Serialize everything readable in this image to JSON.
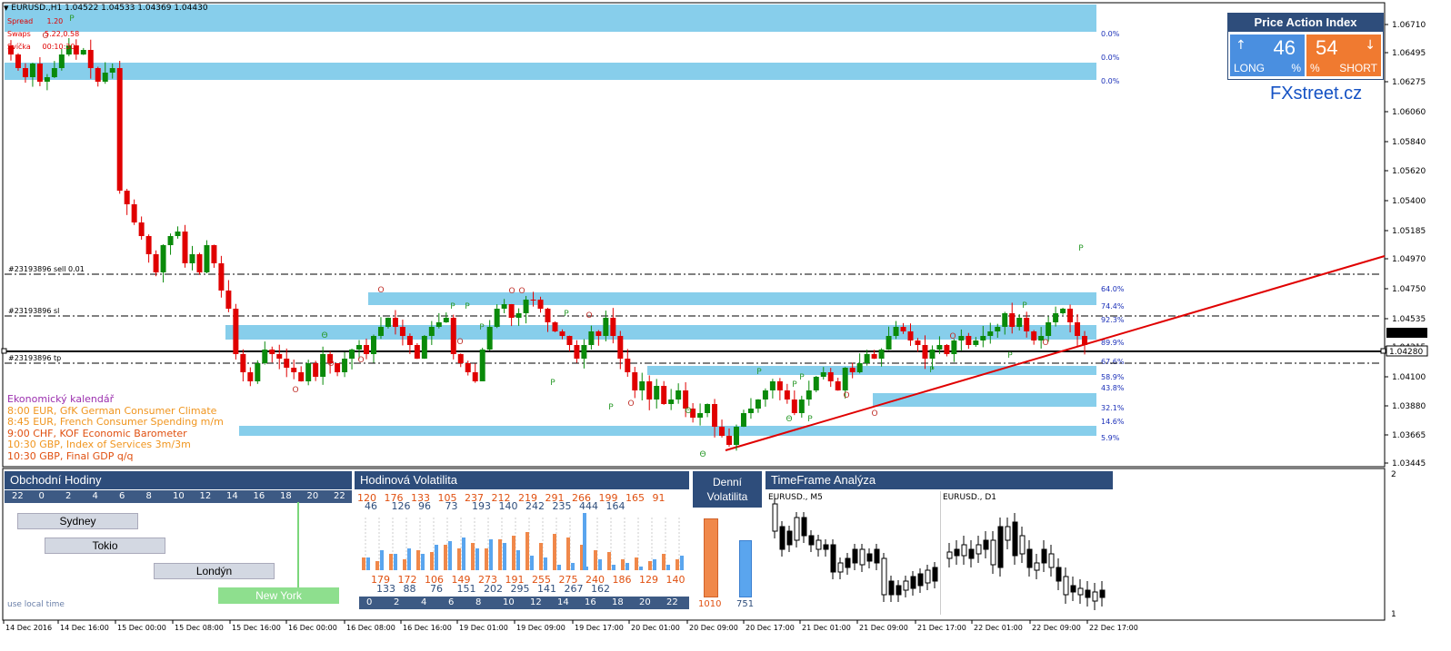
{
  "symbol_header": "EURUSD.,H1  1.04522 1.04533 1.04369 1.04430",
  "info": {
    "spread_label": "Spread",
    "spread_value": "1.20",
    "swaps_label": "Swaps",
    "swaps_value": "5.22,0.58",
    "candle_label": "Svíčka",
    "candle_value": "00:10:30"
  },
  "price_axis": [
    "1.06710",
    "1.06495",
    "1.06275",
    "1.06060",
    "1.05840",
    "1.05620",
    "1.05400",
    "1.05185",
    "1.04970",
    "1.04750",
    "1.04535",
    "1.04315",
    "1.04100",
    "1.03880",
    "1.03665",
    "1.03445"
  ],
  "price_current": "1.04430",
  "price_line": "1.04280",
  "order_lines": {
    "sell": "#23193896 sell 0.01",
    "sl": "#23193896 sl",
    "tp": "#23193896 tp"
  },
  "zone_percents": [
    "0.0%",
    "0.0%",
    "0.0%",
    "64.0%",
    "74.4%",
    "92.3%",
    "89.9%",
    "67.6%",
    "58.9%",
    "43.8%",
    "32.1%",
    "14.6%",
    "5.9%"
  ],
  "calendar": {
    "title": "Ekonomický kalendář",
    "events": [
      {
        "text": "8:00 EUR, GfK German Consumer Climate",
        "color": "#f0951e"
      },
      {
        "text": "8:45 EUR, French Consumer Spending m/m",
        "color": "#f0951e"
      },
      {
        "text": "9:00 CHF, KOF Economic Barometer",
        "color": "#e05010"
      },
      {
        "text": "10:30 GBP, Index of Services 3m/3m",
        "color": "#f0951e"
      },
      {
        "text": "10:30 GBP, Final GDP q/q",
        "color": "#e05010"
      }
    ]
  },
  "price_action_index": {
    "title": "Price Action Index",
    "long_value": "46",
    "long_label": "LONG",
    "long_pct": "%",
    "short_value": "54",
    "short_label": "SHORT",
    "short_pct": "%",
    "up_arrow": "↑",
    "down_arrow": "↓",
    "colors": {
      "long": "#4a8fe0",
      "short": "#f07a30",
      "header": "#2e4d7b"
    }
  },
  "fxstreet": "FXstreet.cz",
  "panels": {
    "trading_hours": {
      "title": "Obchodní Hodiny",
      "hours": [
        "22",
        "0",
        "2",
        "4",
        "6",
        "8",
        "10",
        "12",
        "14",
        "16",
        "18",
        "20",
        "22"
      ],
      "sessions": [
        "Sydney",
        "Tokio",
        "Londýn",
        "New York"
      ],
      "footer": "use local time"
    },
    "hourly_volatility": {
      "title": "Hodinová Volatilita",
      "top_orange": [
        "120",
        "176",
        "133",
        "105",
        "237",
        "212",
        "219",
        "291",
        "266",
        "199",
        "165",
        "91"
      ],
      "top_blue": [
        "46",
        "126",
        "96",
        "73",
        "193",
        "140",
        "242",
        "235",
        "444",
        "164"
      ],
      "bottom_orange": [
        "179",
        "172",
        "106",
        "149",
        "273",
        "191",
        "255",
        "275",
        "240",
        "186",
        "129",
        "140"
      ],
      "bottom_blue": [
        "133",
        "88",
        "76",
        "151",
        "202",
        "295",
        "141",
        "267",
        "162"
      ],
      "hours": [
        "0",
        "2",
        "4",
        "6",
        "8",
        "10",
        "12",
        "14",
        "16",
        "18",
        "20",
        "22"
      ]
    },
    "daily_volatility": {
      "title_line1": "Denní",
      "title_line2": "Volatilita",
      "orange_value": "1010",
      "blue_value": "751"
    },
    "timeframe": {
      "title": "TimeFrame Analýza",
      "left_label": "EURUSD., M5",
      "right_label": "EURUSD., D1"
    }
  },
  "sub_axis": {
    "top": "2",
    "bottom": "1"
  },
  "time_axis": [
    "14 Dec 2016",
    "14 Dec 16:00",
    "15 Dec 00:00",
    "15 Dec 08:00",
    "15 Dec 16:00",
    "16 Dec 00:00",
    "16 Dec 08:00",
    "16 Dec 16:00",
    "19 Dec 01:00",
    "19 Dec 09:00",
    "19 Dec 17:00",
    "20 Dec 01:00",
    "20 Dec 09:00",
    "20 Dec 17:00",
    "21 Dec 01:00",
    "21 Dec 09:00",
    "21 Dec 17:00",
    "22 Dec 01:00",
    "22 Dec 09:00",
    "22 Dec 17:00"
  ]
}
